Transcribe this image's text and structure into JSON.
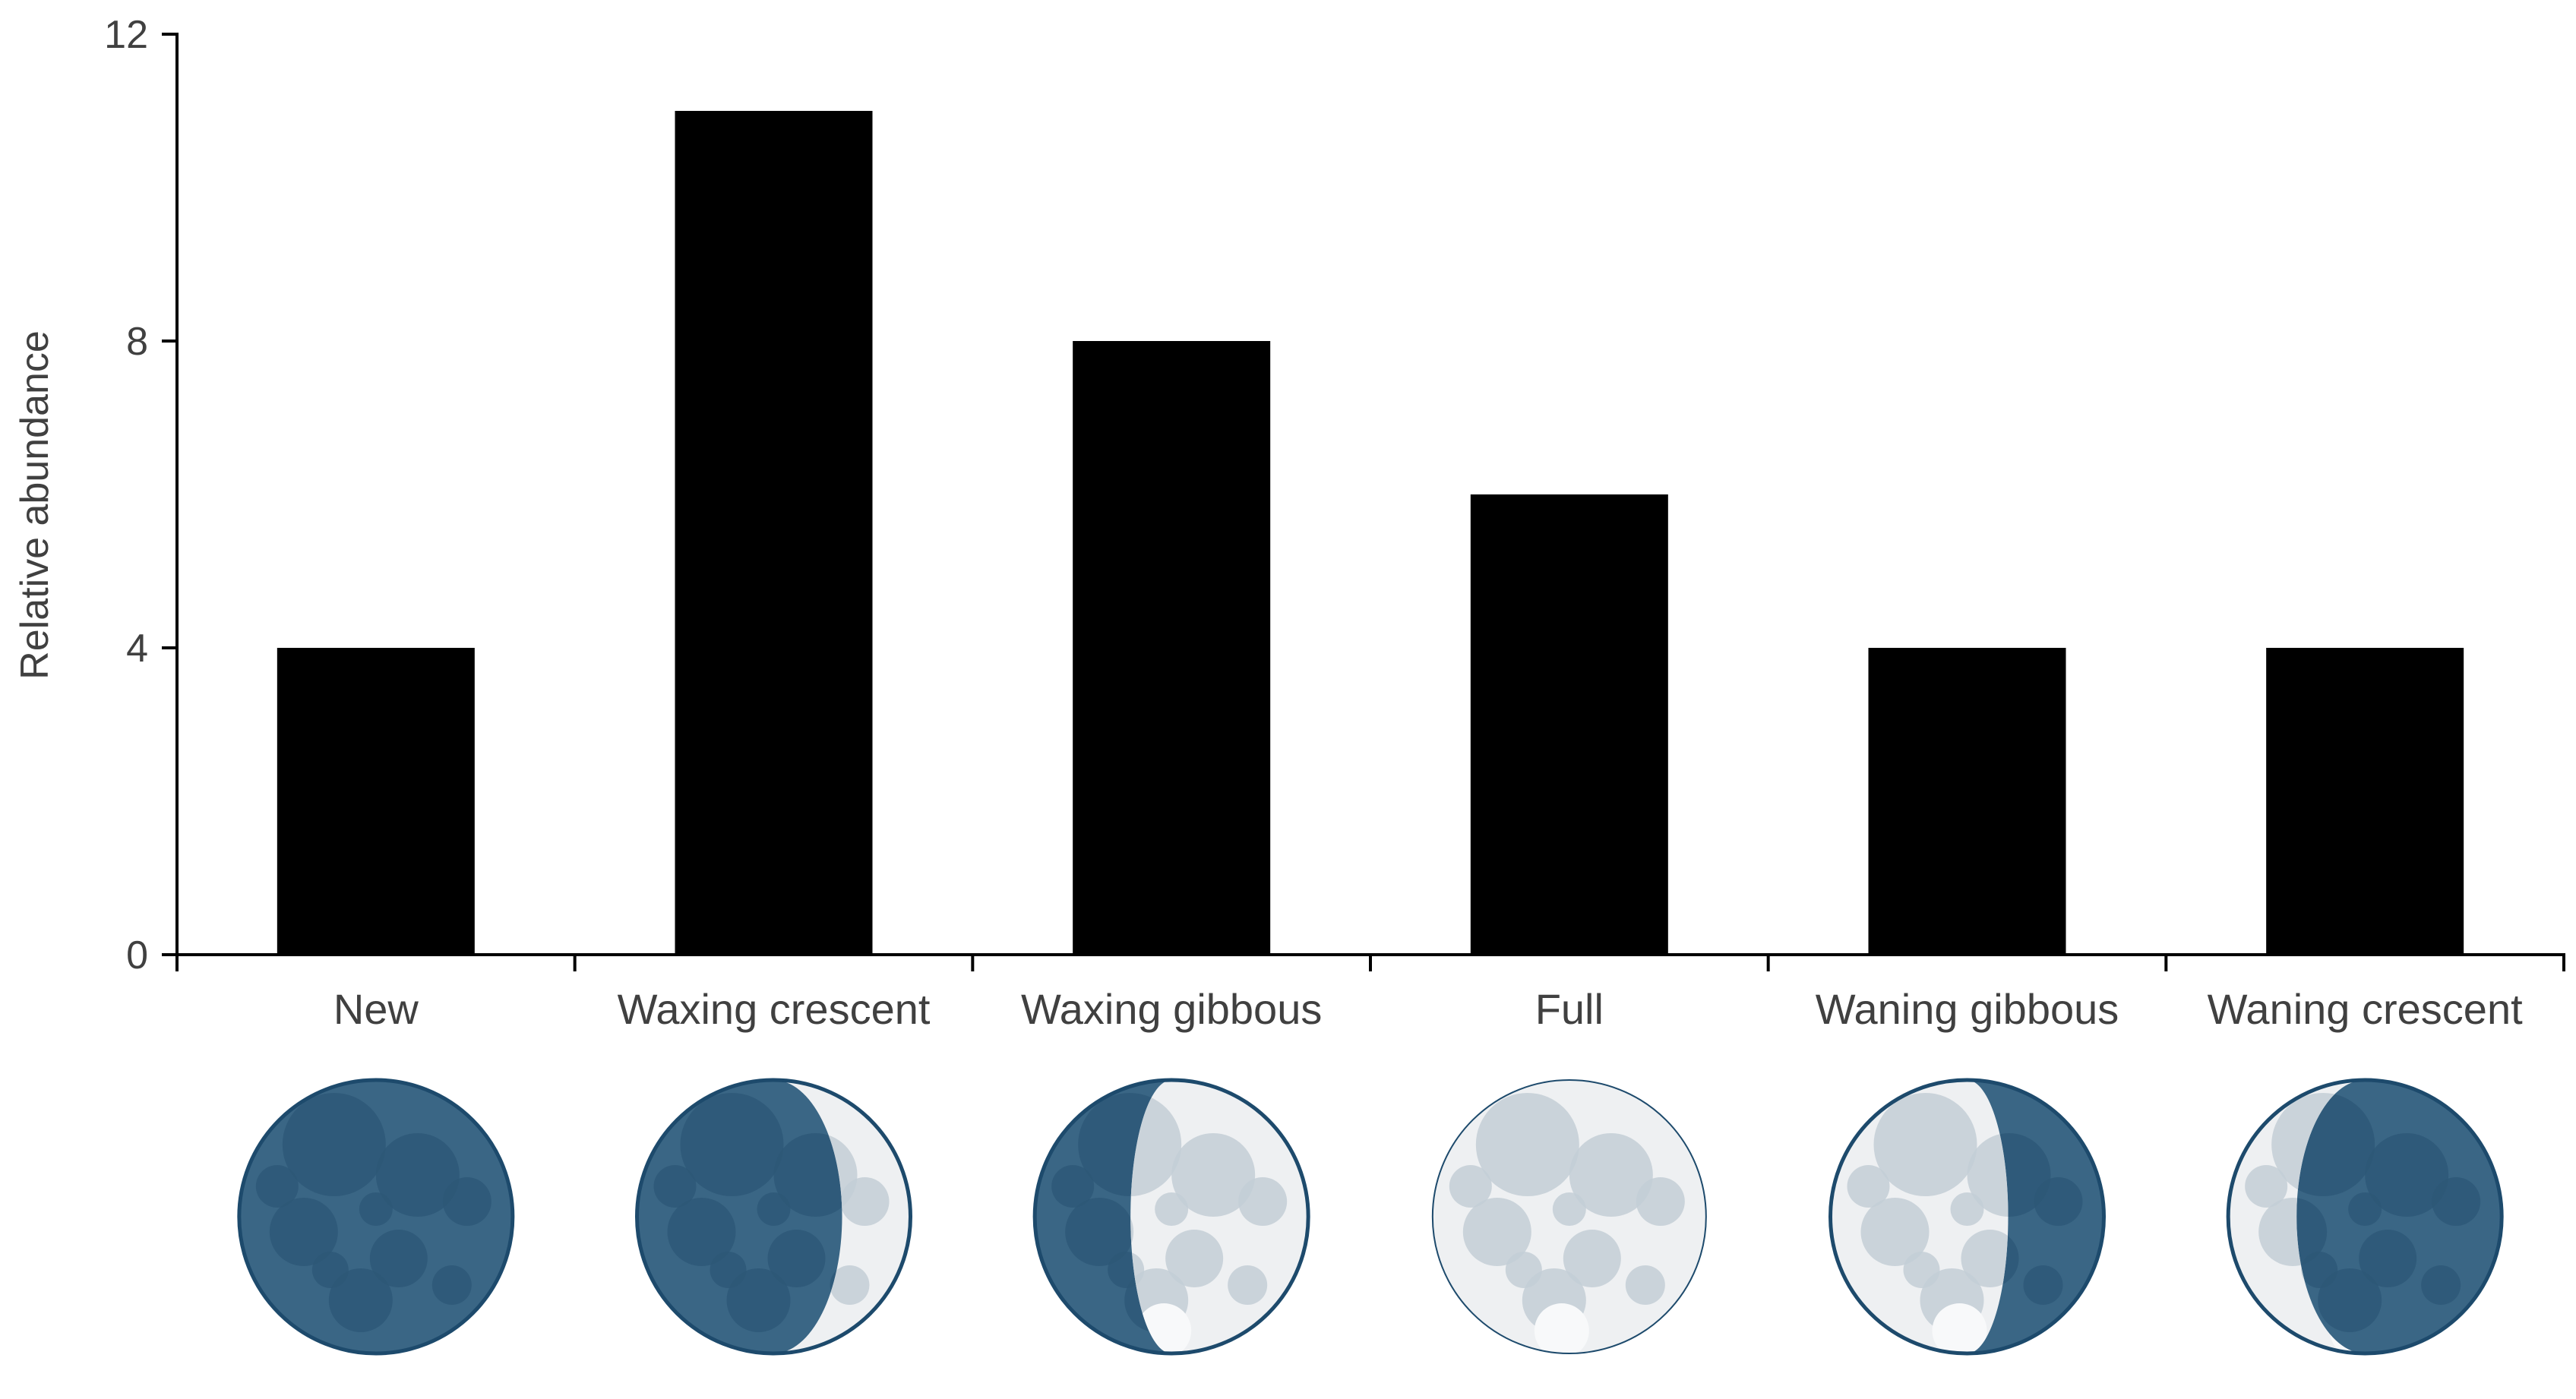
{
  "chart_data": {
    "type": "bar",
    "title": "",
    "xlabel": "",
    "ylabel": "Relative abundance",
    "ylim": [
      0,
      12
    ],
    "yticks": [
      0,
      4,
      8,
      12
    ],
    "categories": [
      "New",
      "Waxing crescent",
      "Waxing gibbous",
      "Full",
      "Waning gibbous",
      "Waning crescent"
    ],
    "values": [
      4,
      11,
      8,
      6,
      4,
      4
    ],
    "bar_color": "#000000",
    "grid": false,
    "legend": "none",
    "phase_icons": [
      "new-moon-icon",
      "waxing-crescent-moon-icon",
      "waxing-gibbous-moon-icon",
      "full-moon-icon",
      "waning-gibbous-moon-icon",
      "waning-crescent-moon-icon"
    ],
    "moon_colors": {
      "dark": "#3a6685",
      "dark_crater": "#2d5877",
      "outline": "#1d4a6c",
      "light": "#eef0f2",
      "light_crater": "#c3ced6"
    },
    "moon_lit_fractions": [
      0,
      0.25,
      0.65,
      1,
      0.65,
      0.25
    ]
  }
}
